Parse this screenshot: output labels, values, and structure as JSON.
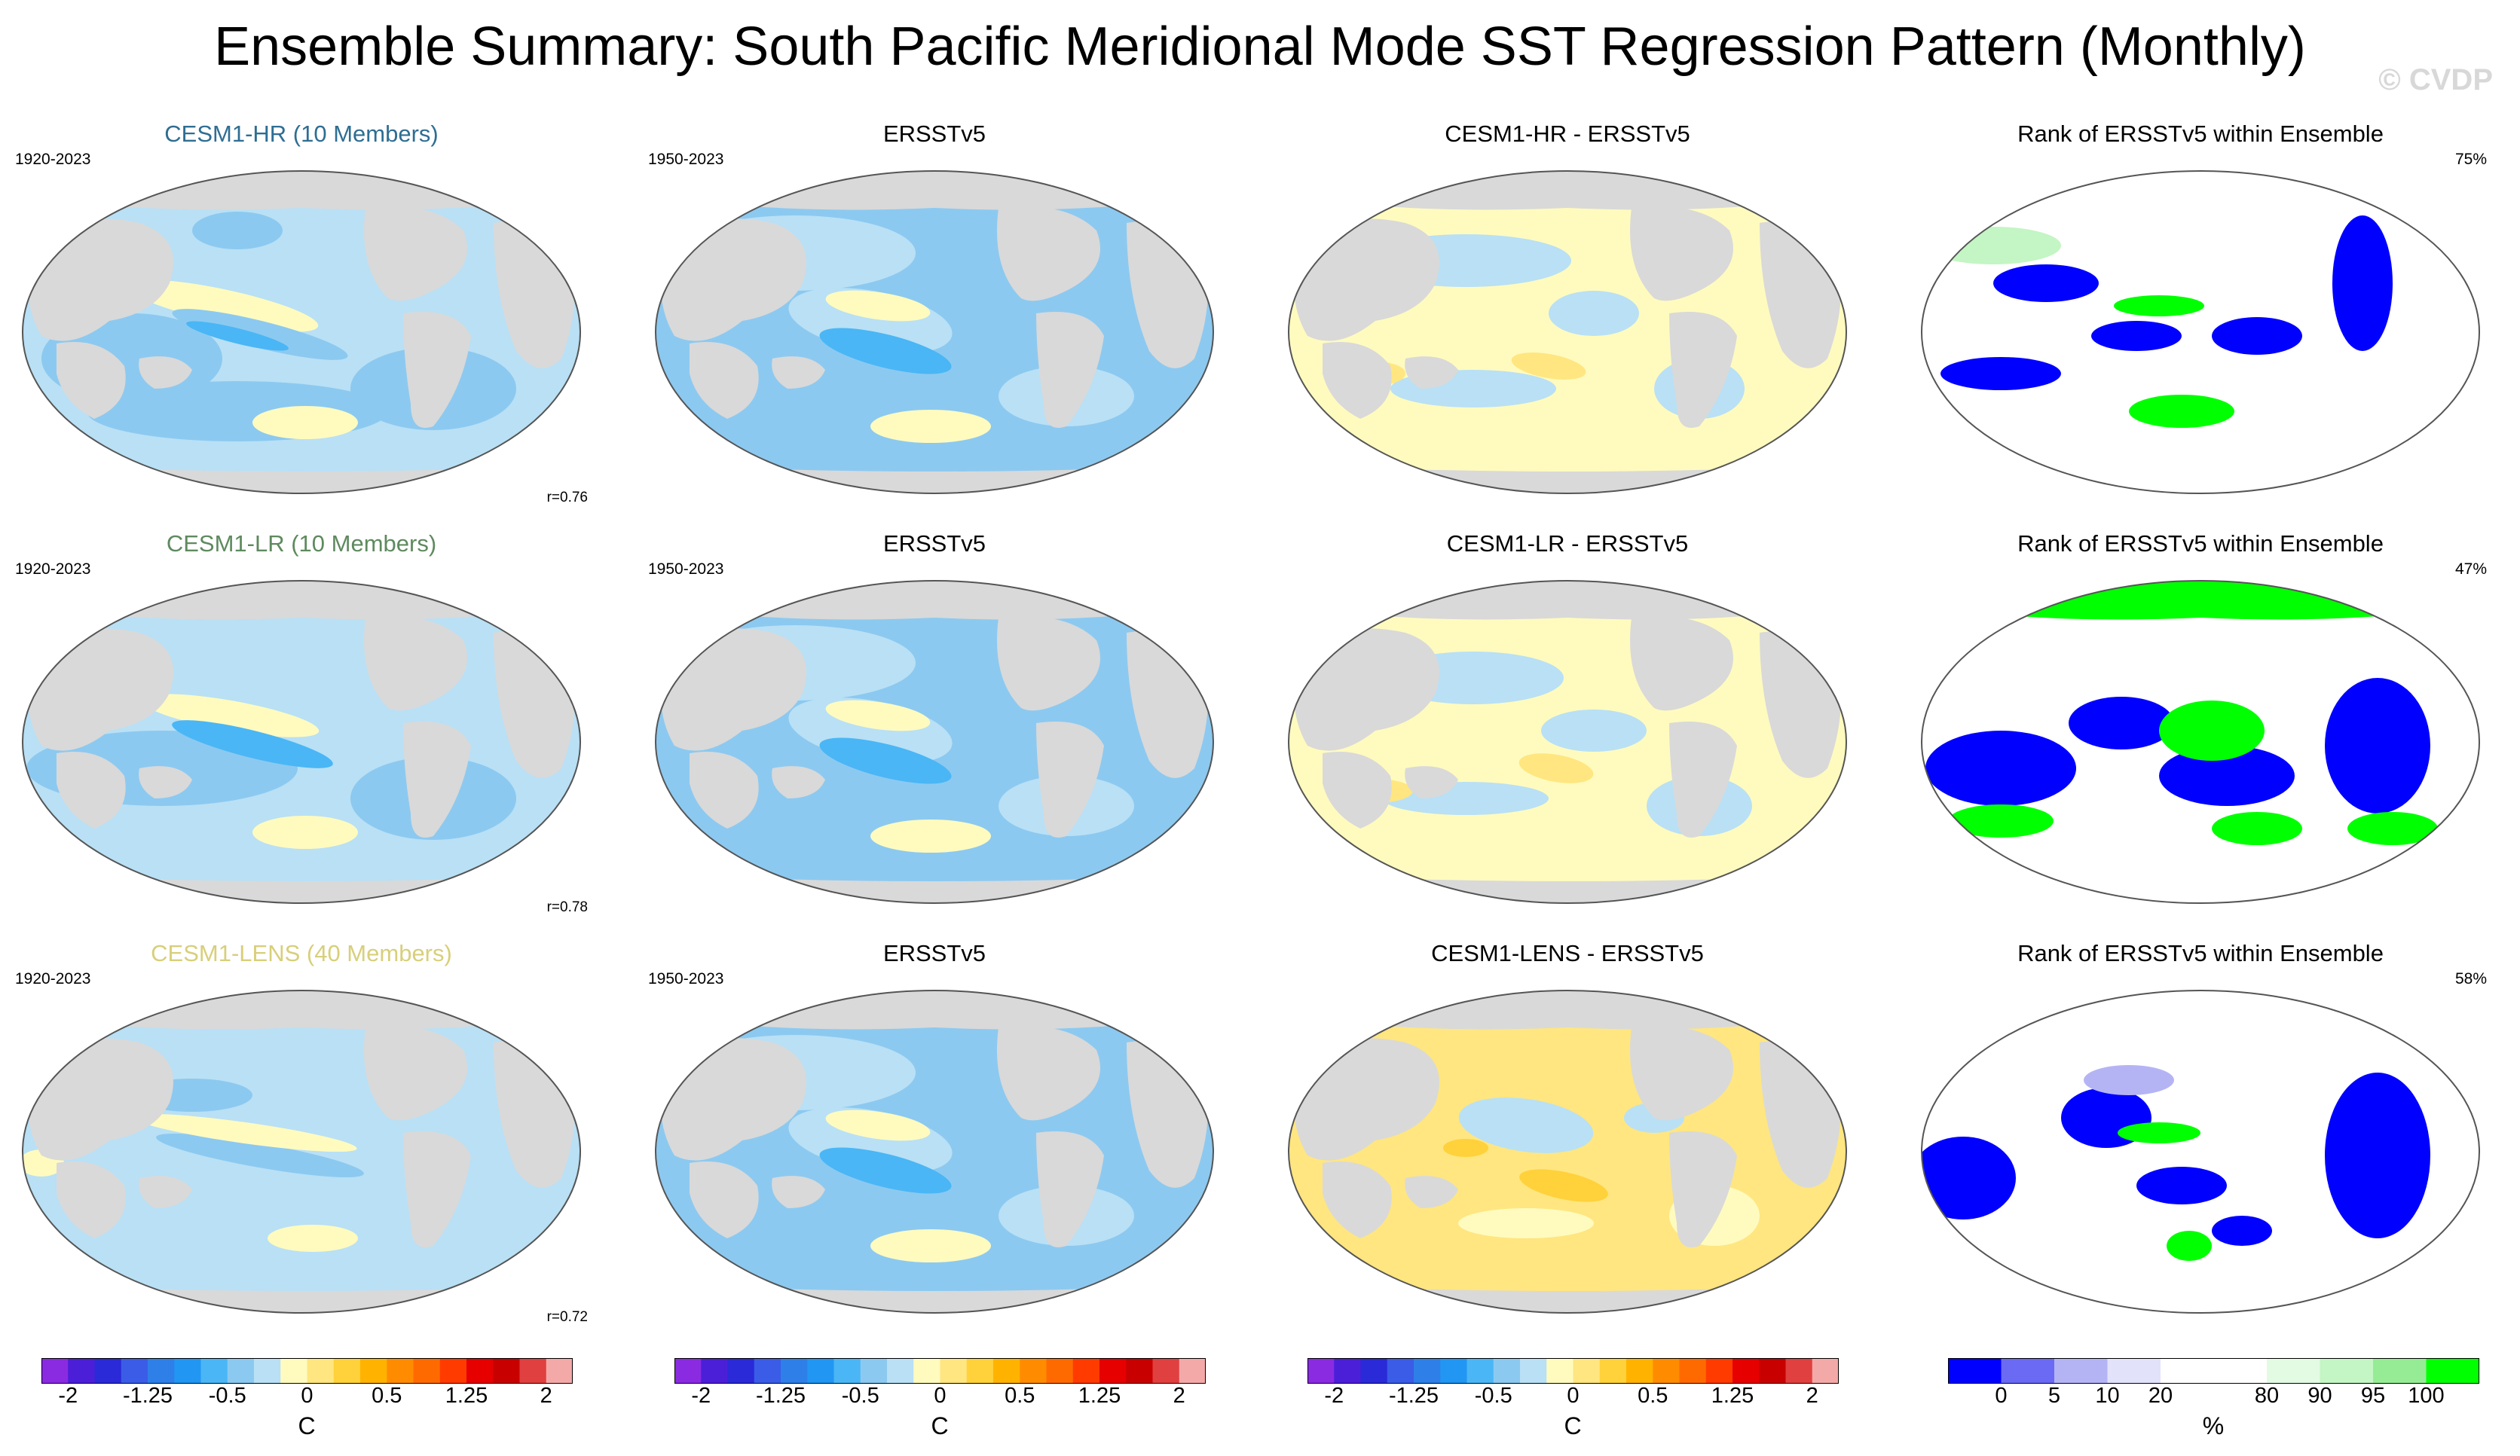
{
  "title": "Ensemble Summary: South Pacific Meridional Mode SST Regression Pattern (Monthly)",
  "watermark": "© CVDP",
  "colors": {
    "land": "#d9d9d9",
    "coast": "#555555",
    "hr_title": "#2e6e93",
    "lr_title": "#5e8a5e",
    "lens_title": "#d8cf7a"
  },
  "rows": [
    {
      "ensemble": {
        "title": "CESM1-HR (10 Members)",
        "period": "1920-2023",
        "r": "r=0.76"
      },
      "obs": {
        "title": "ERSSTv5",
        "period": "1950-2023"
      },
      "diff": {
        "title": "CESM1-HR - ERSSTv5"
      },
      "rank": {
        "title": "Rank of ERSSTv5 within Ensemble",
        "pct": "75%"
      }
    },
    {
      "ensemble": {
        "title": "CESM1-LR (10 Members)",
        "period": "1920-2023",
        "r": "r=0.78"
      },
      "obs": {
        "title": "ERSSTv5",
        "period": "1950-2023"
      },
      "diff": {
        "title": "CESM1-LR - ERSSTv5"
      },
      "rank": {
        "title": "Rank of ERSSTv5 within Ensemble",
        "pct": "47%"
      }
    },
    {
      "ensemble": {
        "title": "CESM1-LENS (40 Members)",
        "period": "1920-2023",
        "r": "r=0.72"
      },
      "obs": {
        "title": "ERSSTv5",
        "period": "1950-2023"
      },
      "diff": {
        "title": "CESM1-LENS - ERSSTv5"
      },
      "rank": {
        "title": "Rank of ERSSTv5 within Ensemble",
        "pct": "58%"
      }
    }
  ],
  "sst_colorbar": {
    "colors": [
      "#8a2be2",
      "#4b1fd8",
      "#2a2ad8",
      "#3a5ce6",
      "#2f7fe8",
      "#2196f3",
      "#4ab6f5",
      "#8cc9f0",
      "#b9e0f5",
      "#fffbbf",
      "#ffe680",
      "#ffd13b",
      "#ffb300",
      "#ff8c00",
      "#ff6a00",
      "#ff3b00",
      "#e60000",
      "#c80000",
      "#e04040",
      "#f4a9a9"
    ],
    "ticks": [
      "-2",
      "-1.25",
      "-0.5",
      "0",
      "0.5",
      "1.25",
      "2"
    ],
    "tick_index": [
      1,
      4,
      7,
      10,
      13,
      16,
      19
    ],
    "units": "C"
  },
  "rank_colorbar": {
    "colors": [
      "#0000ff",
      "#6a6af5",
      "#b4b4f5",
      "#e2e2fb",
      "#ffffff",
      "#ffffff",
      "#e3fae3",
      "#c4f5c4",
      "#95ec95",
      "#00ff00"
    ],
    "ticks": [
      "0",
      "5",
      "10",
      "20",
      "80",
      "90",
      "95",
      "100"
    ],
    "tick_index": [
      1,
      2,
      3,
      4,
      6,
      7,
      8,
      9
    ],
    "units": "%"
  }
}
